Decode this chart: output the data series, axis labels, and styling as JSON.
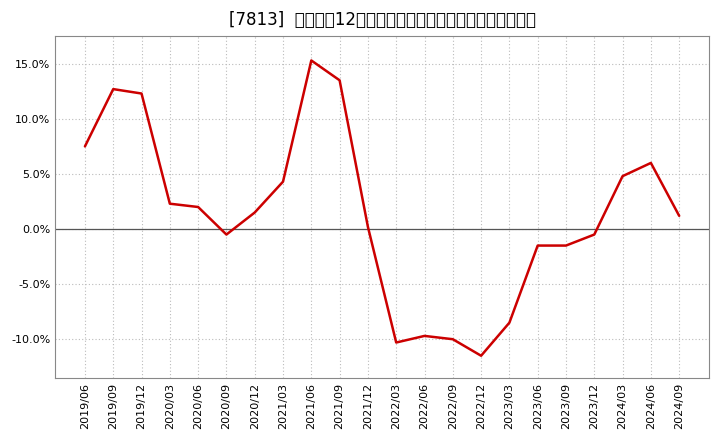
{
  "title": "[7813]  売上高の12か月移動合計の対前年同期増減率の推移",
  "line_color": "#cc0000",
  "bg_color": "#ffffff",
  "plot_bg_color": "#ffffff",
  "grid_color": "#bbbbbb",
  "dates": [
    "2019/06",
    "2019/09",
    "2019/12",
    "2020/03",
    "2020/06",
    "2020/09",
    "2020/12",
    "2021/03",
    "2021/06",
    "2021/09",
    "2021/12",
    "2022/03",
    "2022/06",
    "2022/09",
    "2022/12",
    "2023/03",
    "2023/06",
    "2023/09",
    "2023/12",
    "2024/03",
    "2024/06",
    "2024/09"
  ],
  "values": [
    7.5,
    12.7,
    12.3,
    2.3,
    2.0,
    -0.5,
    1.5,
    4.3,
    15.3,
    13.5,
    0.2,
    -10.3,
    -9.7,
    -10.0,
    -11.5,
    -8.5,
    -1.5,
    -1.5,
    -0.5,
    4.8,
    6.0,
    1.2
  ],
  "ylim": [
    -13.5,
    17.5
  ],
  "yticks": [
    -10.0,
    -5.0,
    0.0,
    5.0,
    10.0,
    15.0
  ],
  "tick_label_fontsize": 8,
  "title_fontsize": 12,
  "zero_line_color": "#555555",
  "spine_color": "#888888"
}
